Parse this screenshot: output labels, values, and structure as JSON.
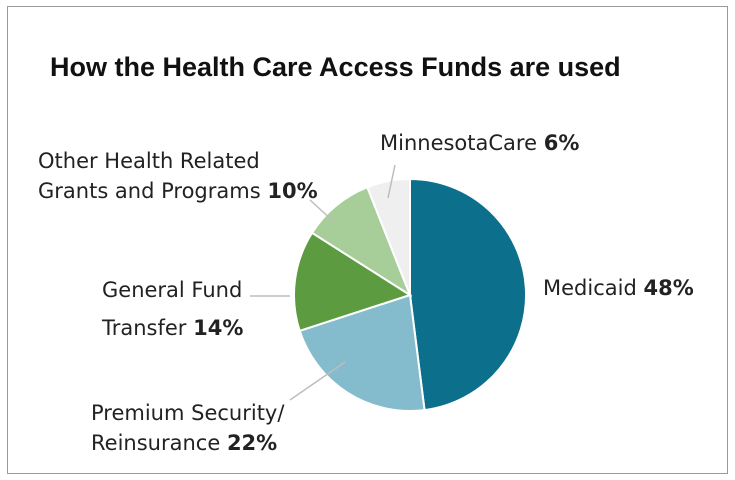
{
  "chart_data": {
    "type": "pie",
    "title": "How the Health Care Access Funds are used",
    "slices": [
      {
        "label": "Medicaid",
        "value": 48,
        "value_text": "48%",
        "color": "#0c708d"
      },
      {
        "label": "Premium Security/ Reinsurance",
        "value": 22,
        "value_text": "22%",
        "color": "#85bccd"
      },
      {
        "label": "General Fund Transfer",
        "value": 14,
        "value_text": "14%",
        "color": "#5c9b40"
      },
      {
        "label": "Other Health Related Grants and Programs",
        "value": 10,
        "value_text": "10%",
        "color": "#a7cd99"
      },
      {
        "label": "MinnesotaCare",
        "value": 6,
        "value_text": "6%",
        "color": "#efefef"
      }
    ]
  },
  "labels": {
    "minnesotacare": {
      "name": "MinnesotaCare",
      "pct": "6%"
    },
    "medicaid": {
      "name": "Medicaid",
      "pct": "48%"
    },
    "other_line1": "Other Health Related",
    "other_line2": "Grants and Programs",
    "other_pct": "10%",
    "general_line1": "General Fund",
    "general_line2": "Transfer",
    "general_pct": "14%",
    "premium_line1": "Premium Security/",
    "premium_line2": "Reinsurance",
    "premium_pct": "22%"
  }
}
